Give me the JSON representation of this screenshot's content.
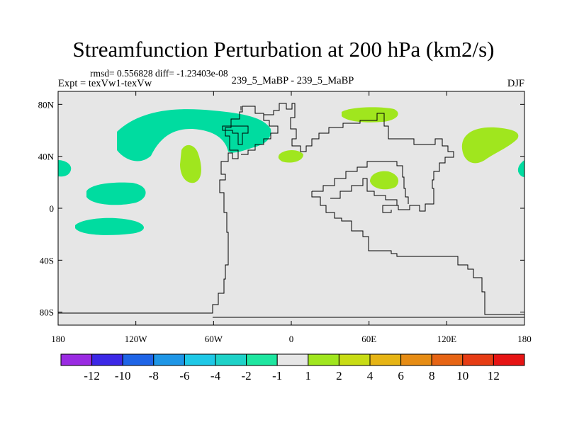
{
  "title": "Streamfunction Perturbation at 200 hPa (km2/s)",
  "stats_line": "rmsd= 0.556828 diff= -1.23403e-08",
  "experiment_line": "Expt = texVw1-texVw",
  "subtitle": "239_5_MaBP - 239_5_MaBP",
  "season": "DJF",
  "map": {
    "background_color": "#e6e6e6",
    "longitude_labels": [
      "180",
      "120W",
      "60W",
      "0",
      "60E",
      "120E",
      "180"
    ],
    "latitude_labels": [
      "80N",
      "40N",
      "0",
      "40S",
      "80S"
    ]
  },
  "colorbar": {
    "colors": [
      "#9a2be2",
      "#3c28e6",
      "#1e64e6",
      "#1e96e6",
      "#1ec8e6",
      "#1ed2c8",
      "#1ee6a0",
      "#e6e6e6",
      "#a0e61e",
      "#c8dc14",
      "#e6b414",
      "#e68c14",
      "#e66414",
      "#e63c14",
      "#e61414"
    ],
    "labels": [
      "-12",
      "-10",
      "-8",
      "-6",
      "-4",
      "-2",
      "-1",
      "1",
      "2",
      "4",
      "6",
      "8",
      "10",
      "12"
    ]
  },
  "field_colors": {
    "negative_1_to_2": "#00dca0",
    "positive_1_to_2": "#a0e61e"
  }
}
